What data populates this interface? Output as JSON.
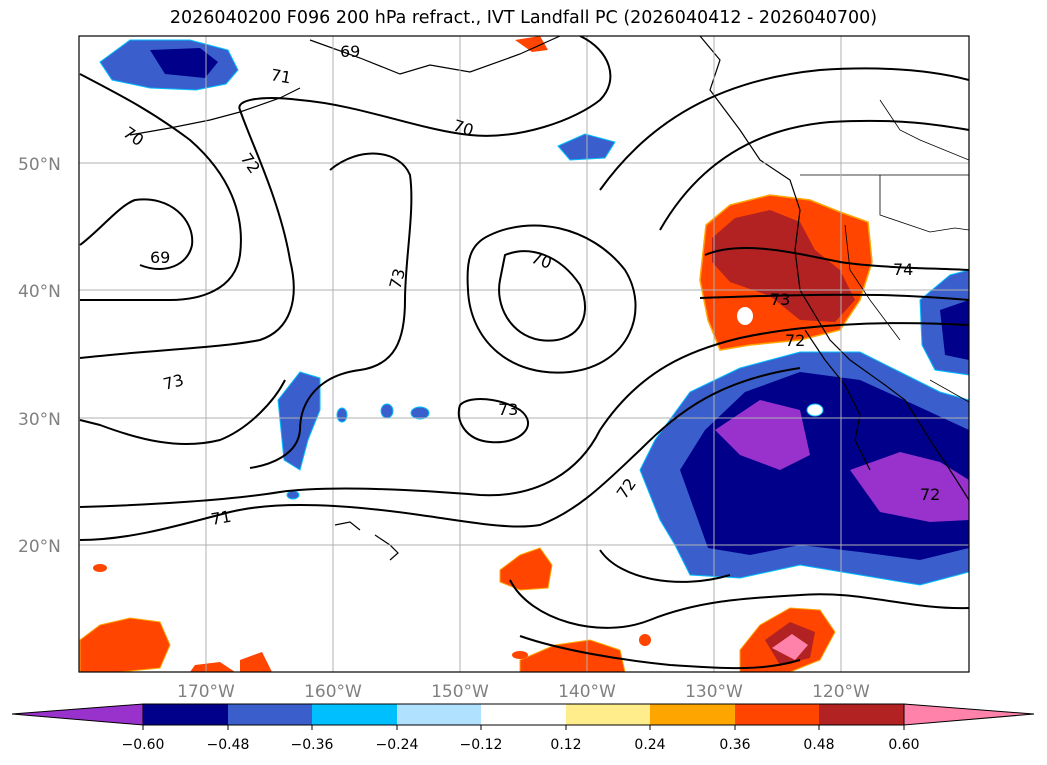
{
  "title": "2026040200 F096 200 hPa refract., IVT Landfall PC (2026040412 - 2026040700)",
  "map": {
    "lat_labels": [
      "50°N",
      "40°N",
      "30°N",
      "20°N"
    ],
    "lon_labels": [
      "170°W",
      "160°W",
      "150°W",
      "140°W",
      "130°W",
      "120°W"
    ],
    "contour_labels": [
      "69",
      "69",
      "70",
      "70",
      "70",
      "71",
      "71",
      "72",
      "72",
      "72",
      "72",
      "73",
      "73",
      "73",
      "73",
      "74"
    ]
  },
  "colorbar": {
    "tick_labels": [
      "−0.60",
      "−0.48",
      "−0.36",
      "−0.24",
      "−0.12",
      "0.12",
      "0.24",
      "0.36",
      "0.48",
      "0.60"
    ],
    "colors": [
      "#9932cc",
      "#00008b",
      "#3a5fcd",
      "#00bfff",
      "#b0e2ff",
      "#ffffff",
      "#ffec8b",
      "#ffa500",
      "#ff4500",
      "#b22222",
      "#ff82ab",
      "#ff82ab"
    ]
  }
}
